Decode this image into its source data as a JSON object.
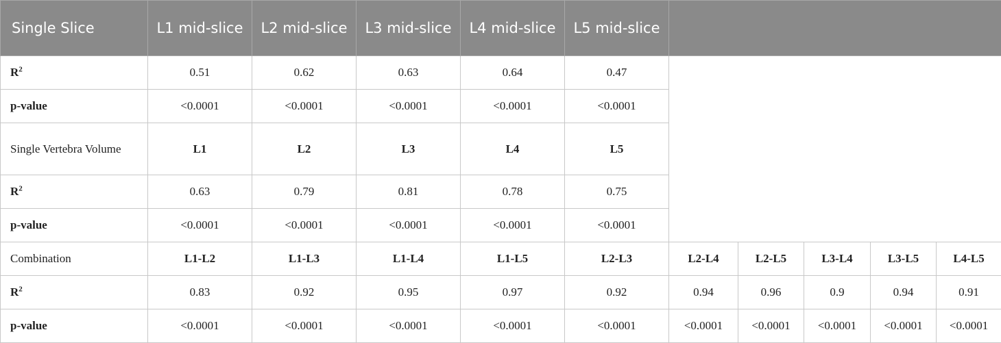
{
  "header": {
    "first": "Single Slice",
    "cols": [
      "L1 mid-slice",
      "L2 mid-slice",
      "L3 mid-slice",
      "L4 mid-slice",
      "L5 mid-slice"
    ]
  },
  "single_slice": {
    "r2_label": "R",
    "r2_sup": "2",
    "r2": [
      "0.51",
      "0.62",
      "0.63",
      "0.64",
      "0.47"
    ],
    "p_label": "p-value",
    "p": [
      "<0.0001",
      "<0.0001",
      "<0.0001",
      "<0.0001",
      "<0.0001"
    ]
  },
  "single_vertebra": {
    "label": "Single Vertebra Volume",
    "cols": [
      "L1",
      "L2",
      "L3",
      "L4",
      "L5"
    ],
    "r2_label": "R",
    "r2_sup": "2",
    "r2": [
      "0.63",
      "0.79",
      "0.81",
      "0.78",
      "0.75"
    ],
    "p_label": "p-value",
    "p": [
      "<0.0001",
      "<0.0001",
      "<0.0001",
      "<0.0001",
      "<0.0001"
    ]
  },
  "combination": {
    "label": "Combination",
    "cols": [
      "L1-L2",
      "L1-L3",
      "L1-L4",
      "L1-L5",
      "L2-L3",
      "L2-L4",
      "L2-L5",
      "L3-L4",
      "L3-L5",
      "L4-L5"
    ],
    "r2_label": "R",
    "r2_sup": "2",
    "r2": [
      "0.83",
      "0.92",
      "0.95",
      "0.97",
      "0.92",
      "0.94",
      "0.96",
      "0.9",
      "0.94",
      "0.91"
    ],
    "p_label": "p-value",
    "p": [
      "<0.0001",
      "<0.0001",
      "<0.0001",
      "<0.0001",
      "<0.0001",
      "<0.0001",
      "<0.0001",
      "<0.0001",
      "<0.0001",
      "<0.0001"
    ]
  }
}
